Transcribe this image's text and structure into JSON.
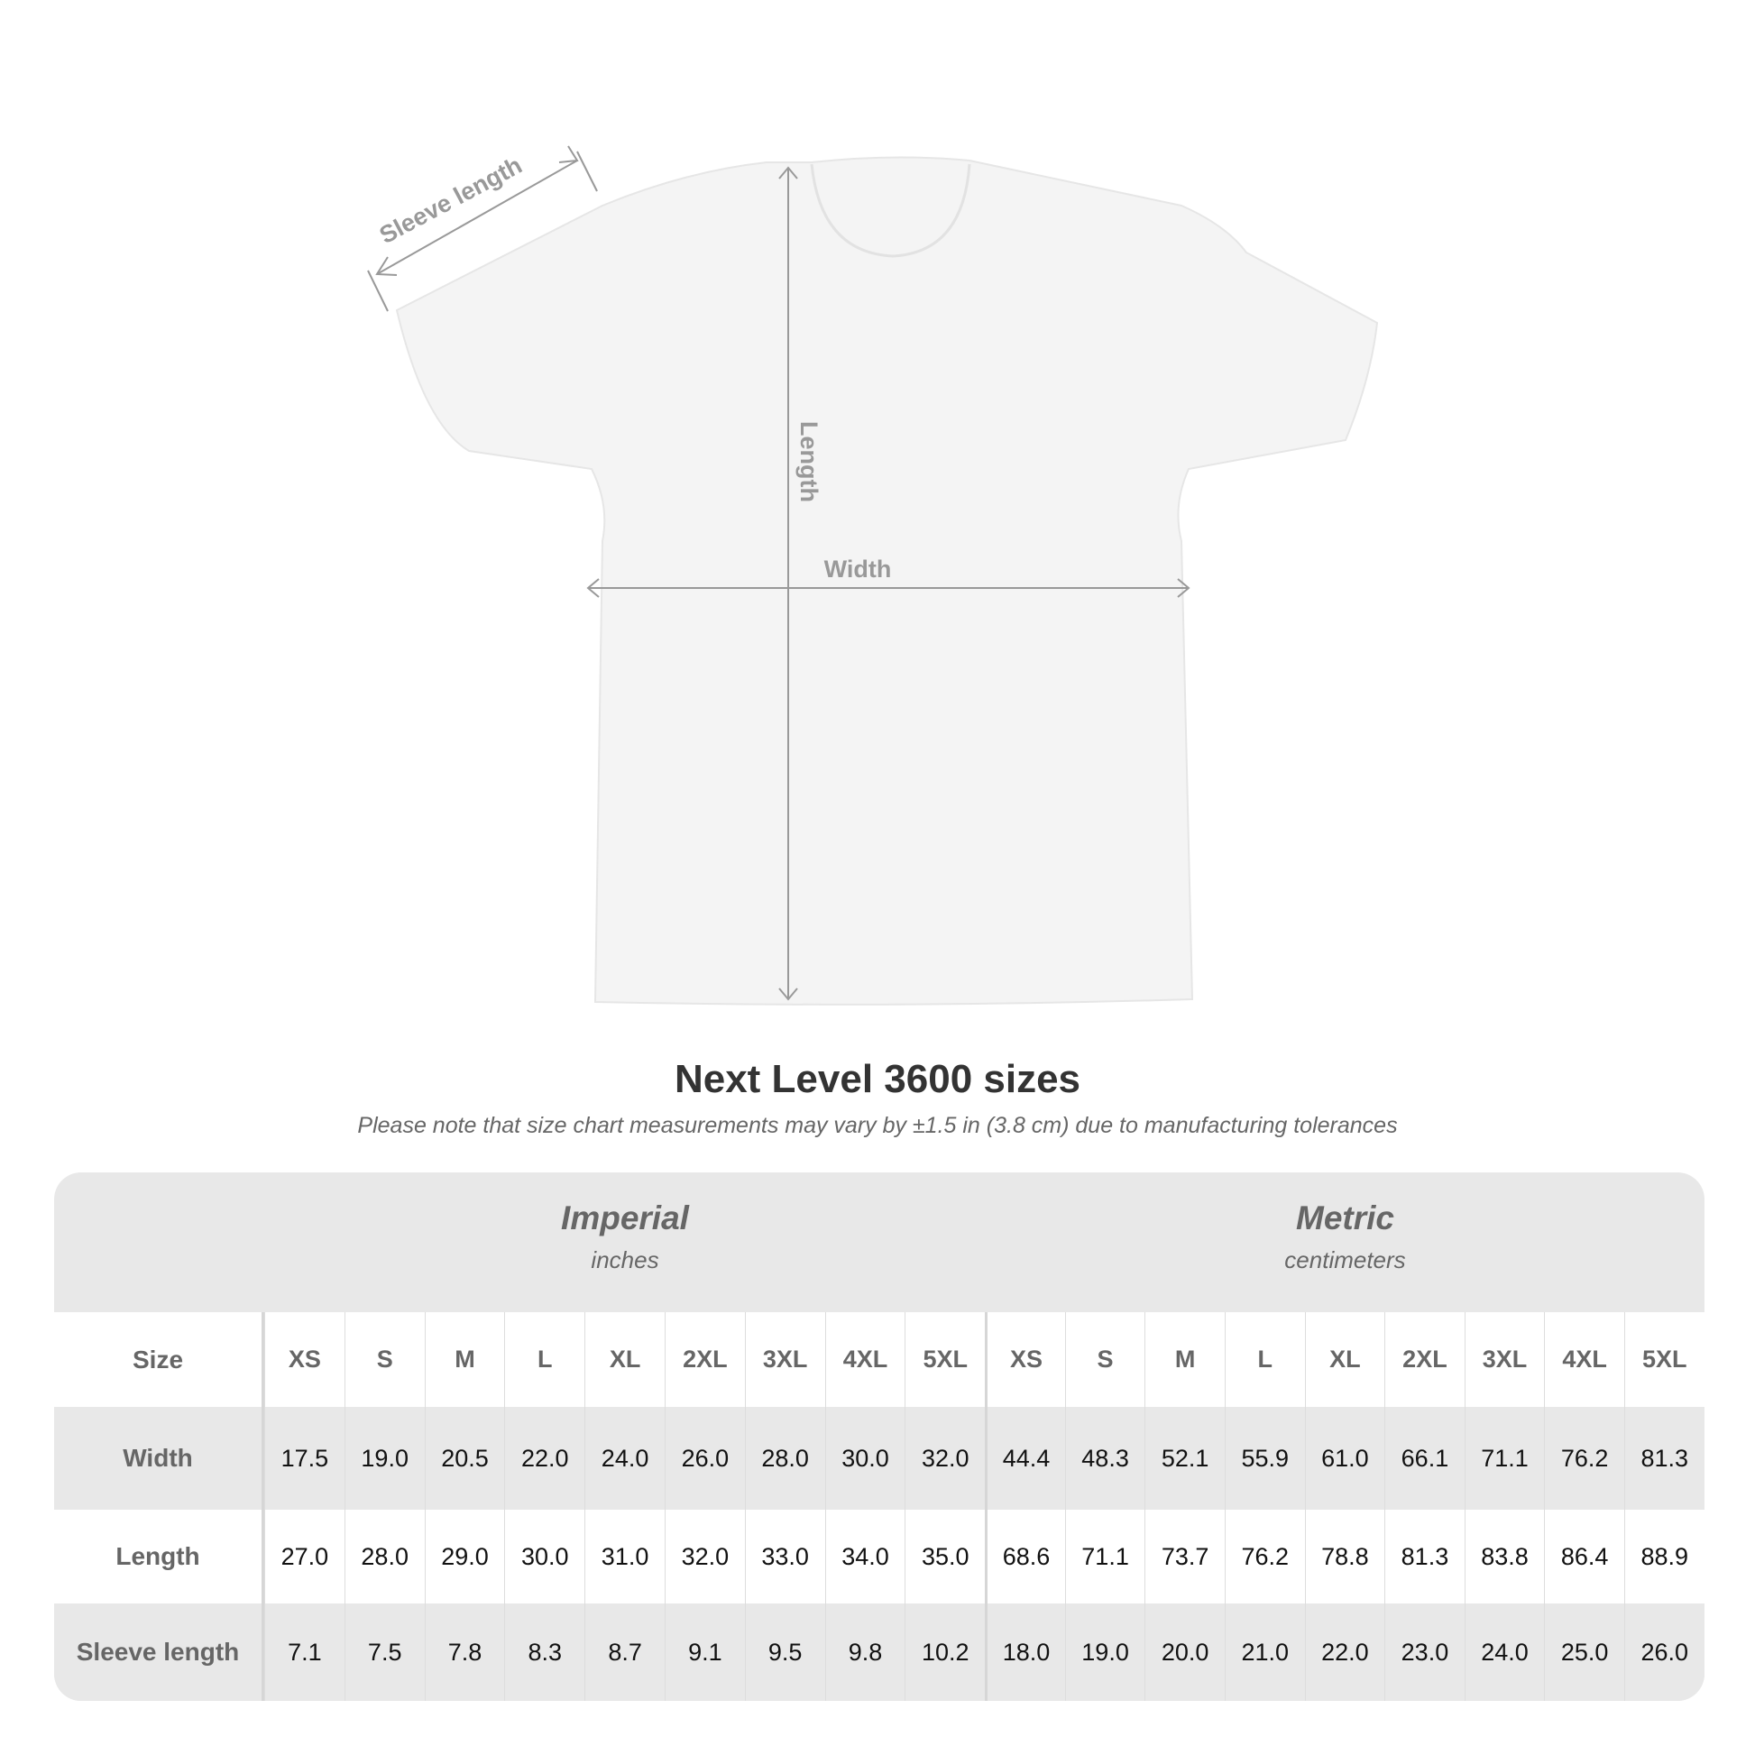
{
  "diagram": {
    "labels": {
      "sleeve": "Sleeve length",
      "length": "Length",
      "width": "Width"
    },
    "colors": {
      "shirt": "#f4f4f4",
      "arrow": "#999999",
      "label": "#999999"
    }
  },
  "title": "Next Level 3600 sizes",
  "note": "Please note that size chart measurements may vary by ±1.5 in (3.8 cm) due to manufacturing tolerances",
  "table": {
    "imperial": {
      "title": "Imperial",
      "unit": "inches"
    },
    "metric": {
      "title": "Metric",
      "unit": "centimeters"
    },
    "size_label": "Size",
    "sizes": [
      "XS",
      "S",
      "M",
      "L",
      "XL",
      "2XL",
      "3XL",
      "4XL",
      "5XL"
    ],
    "rows": [
      {
        "label": "Width",
        "imperial": [
          "17.5",
          "19.0",
          "20.5",
          "22.0",
          "24.0",
          "26.0",
          "28.0",
          "30.0",
          "32.0"
        ],
        "metric": [
          "44.4",
          "48.3",
          "52.1",
          "55.9",
          "61.0",
          "66.1",
          "71.1",
          "76.2",
          "81.3"
        ]
      },
      {
        "label": "Length",
        "imperial": [
          "27.0",
          "28.0",
          "29.0",
          "30.0",
          "31.0",
          "32.0",
          "33.0",
          "34.0",
          "35.0"
        ],
        "metric": [
          "68.6",
          "71.1",
          "73.7",
          "76.2",
          "78.8",
          "81.3",
          "83.8",
          "86.4",
          "88.9"
        ]
      },
      {
        "label": "Sleeve length",
        "imperial": [
          "7.1",
          "7.5",
          "7.8",
          "8.3",
          "8.7",
          "9.1",
          "9.5",
          "9.8",
          "10.2"
        ],
        "metric": [
          "18.0",
          "19.0",
          "20.0",
          "21.0",
          "22.0",
          "23.0",
          "24.0",
          "25.0",
          "26.0"
        ]
      }
    ]
  }
}
